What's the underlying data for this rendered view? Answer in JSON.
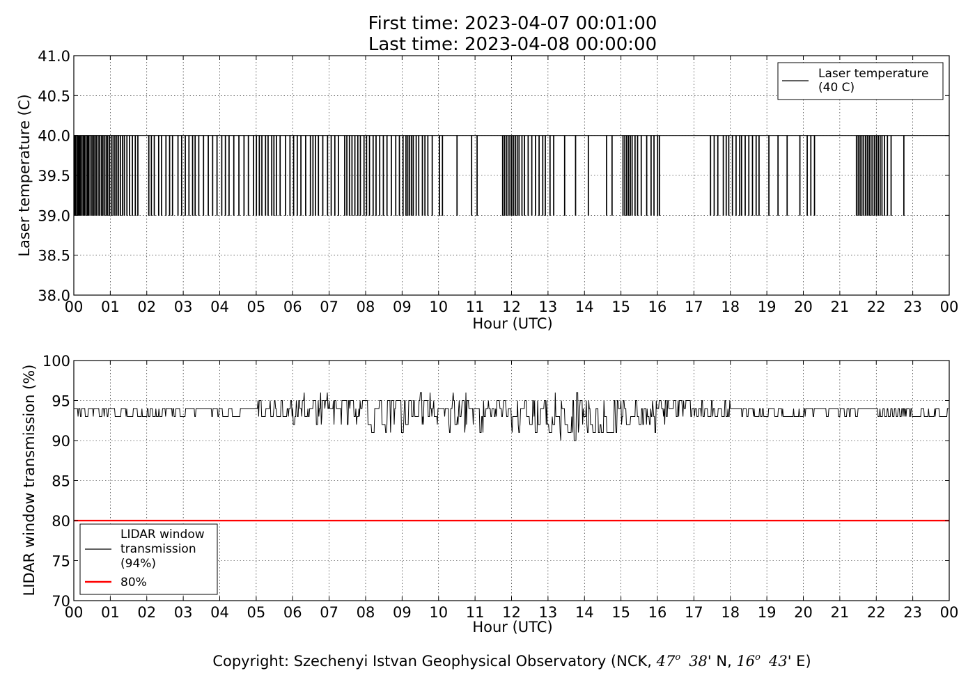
{
  "header": {
    "title_line1": "First time: 2023-04-07 00:01:00",
    "title_line2": "Last time: 2023-04-08 00:00:00"
  },
  "footer": {
    "copyright_prefix": "Copyright: Szechenyi Istvan Geophysical Observatory (NCK, ",
    "lat_deg": "47",
    "lat_min": "38",
    "lat_hemi": "' N, ",
    "lon_deg": "16",
    "lon_min": "43",
    "lon_hemi": "' E)",
    "degree_symbol": "o"
  },
  "chart_data": [
    {
      "type": "line",
      "xlabel": "Hour (UTC)",
      "ylabel": "Laser temperature (C)",
      "ylim": [
        38.0,
        41.0
      ],
      "yticks": [
        "38.0",
        "38.5",
        "39.0",
        "39.5",
        "40.0",
        "40.5",
        "41.0"
      ],
      "ytick_values": [
        38.0,
        38.5,
        39.0,
        39.5,
        40.0,
        40.5,
        41.0
      ],
      "xlim": [
        0,
        24
      ],
      "xticks": [
        "00",
        "01",
        "02",
        "03",
        "04",
        "05",
        "06",
        "07",
        "08",
        "09",
        "10",
        "11",
        "12",
        "13",
        "14",
        "15",
        "16",
        "17",
        "18",
        "19",
        "20",
        "21",
        "22",
        "23",
        "00"
      ],
      "grid": true,
      "legend_position": "top-right",
      "series": [
        {
          "name": "Laser temperature\n(40 C)",
          "color": "#000000",
          "base_value": 40.0,
          "drop_value": 39.0,
          "note_shape": "value is 40 C, frequently dropping to 39 C in dense bursts",
          "drop_density_by_hour": [
            0.55,
            0.5,
            0.3,
            0.35,
            0.3,
            0.4,
            0.3,
            0.4,
            0.45,
            0.5,
            0.15,
            0.05,
            0.5,
            0.3,
            0.15,
            0.45,
            0.25,
            0.0,
            0.35,
            0.2,
            0.2,
            0.0,
            0.55,
            0.1
          ],
          "drops_hours": [
            0.02,
            0.05,
            0.09,
            0.12,
            0.15,
            0.18,
            0.22,
            0.26,
            0.29,
            0.33,
            0.37,
            0.4,
            0.44,
            0.49,
            0.53,
            0.57,
            0.61,
            0.66,
            0.7,
            0.75,
            0.79,
            0.83,
            0.88,
            0.92,
            0.97,
            1.02,
            1.07,
            1.12,
            1.17,
            1.22,
            1.27,
            1.33,
            1.38,
            1.45,
            1.52,
            1.6,
            1.68,
            1.75,
            2.05,
            2.12,
            2.2,
            2.32,
            2.4,
            2.52,
            2.62,
            2.7,
            2.85,
            2.95,
            3.05,
            3.15,
            3.25,
            3.32,
            3.42,
            3.55,
            3.68,
            3.8,
            3.92,
            4.05,
            4.15,
            4.25,
            4.38,
            4.52,
            4.66,
            4.78,
            4.92,
            5.0,
            5.08,
            5.15,
            5.25,
            5.32,
            5.42,
            5.48,
            5.55,
            5.65,
            5.8,
            5.92,
            6.02,
            6.12,
            6.22,
            6.35,
            6.48,
            6.55,
            6.62,
            6.7,
            6.82,
            6.95,
            7.05,
            7.15,
            7.25,
            7.42,
            7.48,
            7.55,
            7.62,
            7.7,
            7.78,
            7.85,
            7.95,
            8.02,
            8.1,
            8.2,
            8.28,
            8.38,
            8.48,
            8.58,
            8.7,
            8.82,
            8.92,
            9.02,
            9.1,
            9.15,
            9.2,
            9.25,
            9.3,
            9.38,
            9.45,
            9.55,
            9.62,
            9.7,
            9.82,
            10.02,
            10.1,
            10.5,
            10.9,
            11.05,
            11.75,
            11.8,
            11.85,
            11.9,
            11.95,
            12.0,
            12.05,
            12.1,
            12.15,
            12.2,
            12.28,
            12.35,
            12.45,
            12.55,
            12.65,
            12.75,
            12.85,
            12.92,
            13.05,
            13.15,
            13.45,
            13.75,
            14.1,
            14.6,
            14.75,
            15.05,
            15.1,
            15.15,
            15.2,
            15.25,
            15.3,
            15.38,
            15.45,
            15.55,
            15.7,
            15.82,
            15.9,
            16.0,
            16.05,
            17.45,
            17.55,
            17.65,
            17.8,
            17.88,
            17.95,
            18.05,
            18.15,
            18.25,
            18.3,
            18.4,
            18.5,
            18.6,
            18.7,
            18.78,
            19.05,
            19.3,
            19.55,
            19.9,
            20.1,
            20.2,
            20.3,
            21.45,
            21.5,
            21.55,
            21.6,
            21.65,
            21.7,
            21.75,
            21.8,
            21.85,
            21.9,
            21.95,
            22.0,
            22.05,
            22.1,
            22.15,
            22.22,
            22.3,
            22.4,
            22.75
          ]
        }
      ]
    },
    {
      "type": "line",
      "xlabel": "Hour (UTC)",
      "ylabel": "LIDAR window transmission (%)",
      "ylim": [
        70,
        100
      ],
      "yticks": [
        "70",
        "75",
        "80",
        "85",
        "90",
        "95",
        "100"
      ],
      "ytick_values": [
        70,
        75,
        80,
        85,
        90,
        95,
        100
      ],
      "xlim": [
        0,
        24
      ],
      "xticks": [
        "00",
        "01",
        "02",
        "03",
        "04",
        "05",
        "06",
        "07",
        "08",
        "09",
        "10",
        "11",
        "12",
        "13",
        "14",
        "15",
        "16",
        "17",
        "18",
        "19",
        "20",
        "21",
        "22",
        "23",
        "00"
      ],
      "grid": true,
      "legend_position": "lower-left",
      "series": [
        {
          "name": "LIDAR window\ntransmission\n(94%)",
          "color": "#000000",
          "hourly_mean": [
            94,
            93.5,
            93.5,
            93.8,
            93.8,
            94,
            94,
            93.5,
            93.5,
            93.5,
            93.5,
            93.5,
            93,
            93,
            93,
            93.5,
            94,
            93.8,
            93.5,
            93.2,
            93.5,
            93.8,
            93.5,
            93.5
          ],
          "hourly_spread": [
            0.6,
            0.6,
            0.6,
            0.5,
            0.5,
            1.0,
            1.2,
            1.5,
            1.6,
            1.6,
            1.6,
            1.6,
            1.8,
            2.0,
            1.6,
            1.5,
            1.2,
            0.8,
            0.6,
            0.5,
            0.5,
            0.4,
            0.6,
            0.6
          ],
          "min_value": 89,
          "max_value": 96
        },
        {
          "name": "80%",
          "color": "#ff0000",
          "constant": 80
        }
      ]
    }
  ]
}
